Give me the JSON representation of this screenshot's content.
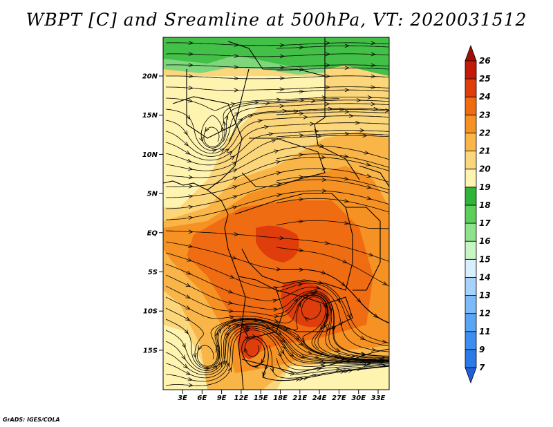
{
  "title": "WBPT [C] and Sreamline at 500hPa, VT: 2020031512",
  "credit": "GrADS: IGES/COLA",
  "lat_labels": [
    "20N",
    "15N",
    "10N",
    "5N",
    "EQ",
    "5S",
    "10S",
    "15S"
  ],
  "lon_labels": [
    "3E",
    "6E",
    "9E",
    "12E",
    "15E",
    "18E",
    "21E",
    "24E",
    "27E",
    "30E",
    "33E"
  ],
  "colorbar": {
    "labels": [
      "7",
      "9",
      "11",
      "12",
      "13",
      "14",
      "15",
      "16",
      "17",
      "18",
      "19",
      "20",
      "21",
      "22",
      "23",
      "24",
      "25",
      "26"
    ],
    "colors": [
      "#1f5fd8",
      "#2a7ae8",
      "#3c8ff0",
      "#5aa5f5",
      "#7cbbf8",
      "#a5d3fb",
      "#d8efff",
      "#c9f5c4",
      "#8ee38a",
      "#5ccf5a",
      "#2fb43a",
      "#fff3b0",
      "#fbd67a",
      "#f9b548",
      "#f59223",
      "#f06c12",
      "#e03d0c",
      "#c41a08",
      "#a00f05"
    ]
  },
  "map_colors": {
    "green": "#43c048",
    "light_green": "#7fd67c",
    "pale_yellow": "#fff3b0",
    "yellow": "#fbd67a",
    "light_orange": "#f9b548",
    "orange": "#f59223",
    "dark_orange": "#f06c12",
    "red": "#e03d0c",
    "border": "#000000",
    "stream": "#000000"
  }
}
